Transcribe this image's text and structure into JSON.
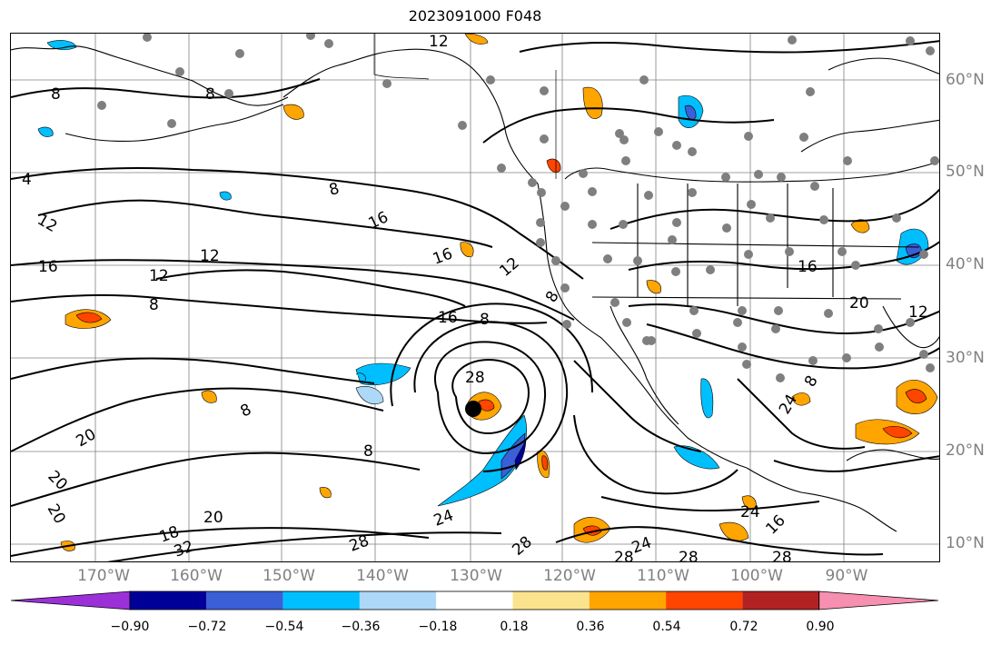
{
  "title": "2023091000 F048",
  "lon_labels": [
    "170°W",
    "160°W",
    "150°W",
    "140°W",
    "130°W",
    "120°W",
    "110°W",
    "100°W",
    "90°W"
  ],
  "lat_labels": [
    "60°N",
    "50°N",
    "40°N",
    "30°N",
    "20°N",
    "10°N"
  ],
  "colorbar": {
    "ticks": [
      "−0.90",
      "−0.72",
      "−0.54",
      "−0.36",
      "−0.18",
      "0.18",
      "0.36",
      "0.54",
      "0.72",
      "0.90"
    ],
    "colors": [
      "#9b30d9",
      "#000099",
      "#3a5fd6",
      "#00bfff",
      "#add8f7",
      "#ffffff",
      "#fbe38e",
      "#ffa500",
      "#ff4500",
      "#b22222",
      "#f78fb0"
    ]
  },
  "contour_labels": [
    "12",
    "8",
    "8",
    "4",
    "12",
    "16",
    "16",
    "12",
    "8",
    "16",
    "12",
    "8",
    "16",
    "8",
    "12",
    "8",
    "28",
    "8",
    "8",
    "20",
    "20",
    "20",
    "20",
    "32",
    "18",
    "28",
    "24",
    "28",
    "24",
    "28",
    "28",
    "28",
    "24",
    "16",
    "16",
    "20",
    "12",
    "8",
    "24"
  ],
  "map_colors": {
    "coast": "#000000",
    "grid": "#808080",
    "station": "#7f7f7f"
  }
}
